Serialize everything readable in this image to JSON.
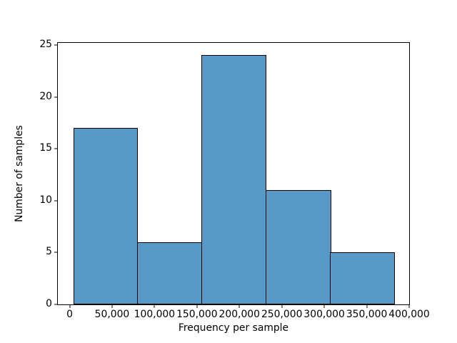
{
  "figure": {
    "background": "#ffffff",
    "text_color": "#000000"
  },
  "chart_data": {
    "type": "bar",
    "subtype": "histogram",
    "xlabel": "Frequency per sample",
    "ylabel": "Number of samples",
    "bin_edges": [
      5000,
      80700,
      156400,
      232100,
      307900,
      383600
    ],
    "counts": [
      17,
      6,
      24,
      11,
      5
    ],
    "xlim": [
      -13900,
      400000
    ],
    "ylim": [
      0,
      25.2
    ],
    "x_ticks": [
      {
        "value": 0,
        "label": "0"
      },
      {
        "value": 50000,
        "label": "50,000"
      },
      {
        "value": 100000,
        "label": "100,000"
      },
      {
        "value": 150000,
        "label": "150,000"
      },
      {
        "value": 200000,
        "label": "200,000"
      },
      {
        "value": 250000,
        "label": "250,000"
      },
      {
        "value": 300000,
        "label": "300,000"
      },
      {
        "value": 350000,
        "label": "350,000"
      },
      {
        "value": 400000,
        "label": "400,000"
      }
    ],
    "y_ticks": [
      {
        "value": 0,
        "label": "0"
      },
      {
        "value": 5,
        "label": "5"
      },
      {
        "value": 10,
        "label": "10"
      },
      {
        "value": 15,
        "label": "15"
      },
      {
        "value": 20,
        "label": "20"
      },
      {
        "value": 25,
        "label": "25"
      }
    ],
    "bar_fill_color": "#5799c7",
    "bar_edge_color": "#000000",
    "grid": false,
    "legend_visible": false
  }
}
